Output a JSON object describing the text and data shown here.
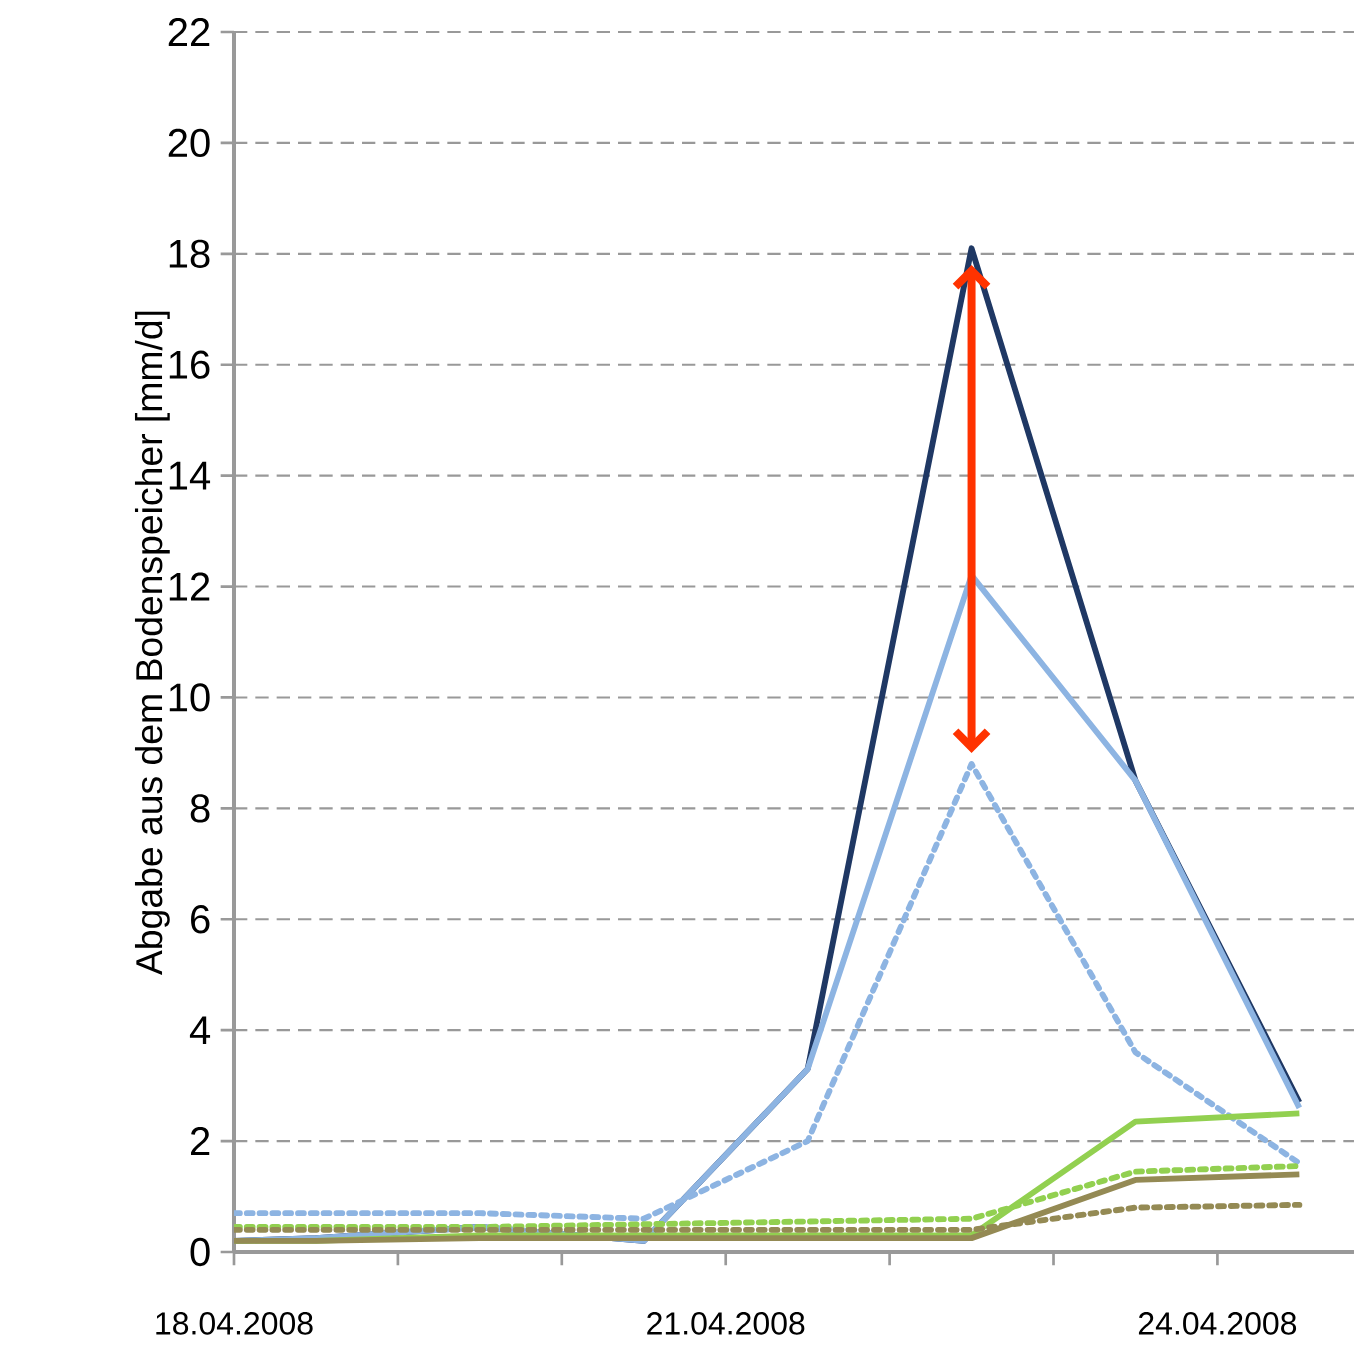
{
  "chart_data": {
    "type": "line",
    "ylabel": "Abgabe aus dem Bodenspeicher [mm/d]",
    "x": [
      "2008-04-18T00:00",
      "2008-04-18T12:00",
      "2008-04-19T12:00",
      "2008-04-20T12:00",
      "2008-04-21T12:00",
      "2008-04-22T12:00",
      "2008-04-23T12:00",
      "2008-04-24T12:00"
    ],
    "xlim": [
      "2008-04-18T00:00",
      "2008-04-24T20:00"
    ],
    "xticks": [
      {
        "value": "2008-04-18",
        "label": "18.04.2008"
      },
      {
        "value": "2008-04-19",
        "label": null
      },
      {
        "value": "2008-04-20",
        "label": null
      },
      {
        "value": "2008-04-21",
        "label": "21.04.2008"
      },
      {
        "value": "2008-04-22",
        "label": null
      },
      {
        "value": "2008-04-23",
        "label": null
      },
      {
        "value": "2008-04-24",
        "label": "24.04.2008"
      }
    ],
    "ylim": [
      0,
      22
    ],
    "yticks": [
      0,
      2,
      4,
      6,
      8,
      10,
      12,
      14,
      16,
      18,
      20,
      22
    ],
    "grid": "y",
    "marker": "none",
    "series": [
      {
        "color": "#1f3864",
        "values": [
          0.2,
          0.25,
          0.45,
          0.2,
          3.3,
          18.1,
          8.5,
          2.7
        ]
      },
      {
        "color": "#8db4e2",
        "values": [
          0.2,
          0.25,
          0.45,
          0.2,
          3.3,
          12.2,
          8.5,
          2.6
        ]
      },
      {
        "color": "#8db4e2",
        "line_style": "dotted",
        "values": [
          0.7,
          0.7,
          0.7,
          0.6,
          2.0,
          8.8,
          3.6,
          1.6
        ]
      },
      {
        "color": "#92d050",
        "values": [
          0.2,
          0.2,
          0.3,
          0.3,
          0.3,
          0.3,
          2.35,
          2.5
        ]
      },
      {
        "color": "#92d050",
        "line_style": "dotted",
        "values": [
          0.45,
          0.45,
          0.45,
          0.5,
          0.55,
          0.6,
          1.45,
          1.55
        ]
      },
      {
        "color": "#948a54",
        "values": [
          0.2,
          0.2,
          0.25,
          0.25,
          0.25,
          0.25,
          1.3,
          1.4
        ]
      },
      {
        "color": "#948a54",
        "line_style": "dotted",
        "values": [
          0.4,
          0.4,
          0.4,
          0.4,
          0.4,
          0.4,
          0.8,
          0.85
        ]
      }
    ]
  }
}
